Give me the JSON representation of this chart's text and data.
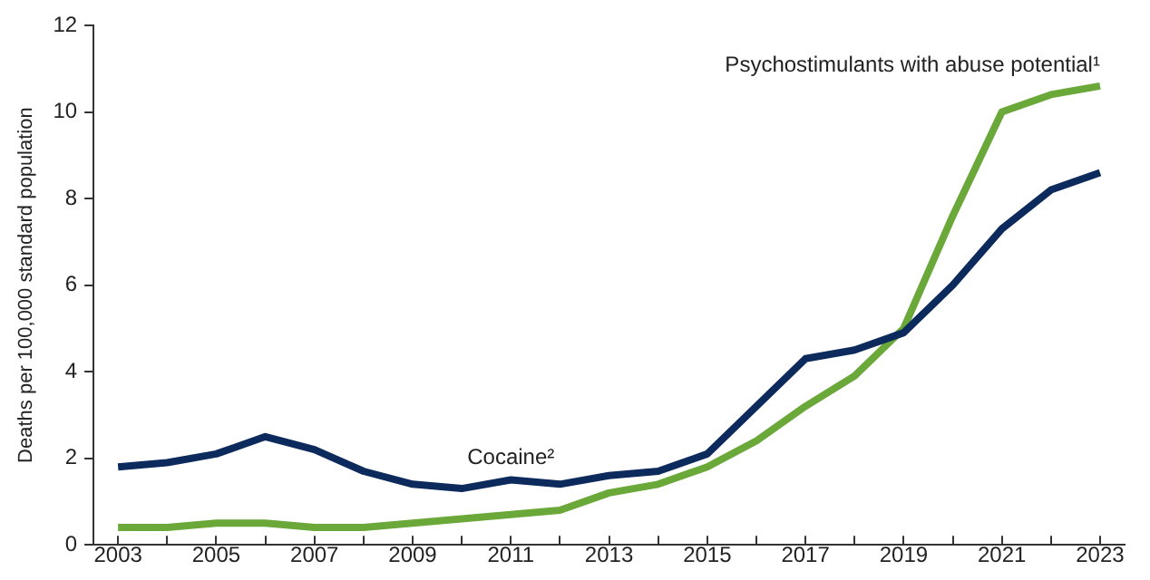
{
  "chart_data": {
    "type": "line",
    "ylabel": "Deaths per 100,000 standard population",
    "x": [
      2003,
      2004,
      2005,
      2006,
      2007,
      2008,
      2009,
      2010,
      2011,
      2012,
      2013,
      2014,
      2015,
      2016,
      2017,
      2018,
      2019,
      2020,
      2021,
      2022,
      2023
    ],
    "series": [
      {
        "name": "Cocaine²",
        "color": "#0d2a5c",
        "values": [
          1.8,
          1.9,
          2.1,
          2.5,
          2.2,
          1.7,
          1.4,
          1.3,
          1.5,
          1.4,
          1.6,
          1.7,
          2.1,
          3.2,
          4.3,
          4.5,
          4.9,
          6.0,
          7.3,
          8.2,
          8.6
        ]
      },
      {
        "name": "Psychostimulants with abuse potential¹",
        "color": "#6aa83a",
        "values": [
          0.4,
          0.4,
          0.5,
          0.5,
          0.4,
          0.4,
          0.5,
          0.6,
          0.7,
          0.8,
          1.2,
          1.4,
          1.8,
          2.4,
          3.2,
          3.9,
          5.0,
          7.6,
          10.0,
          10.4,
          10.6
        ]
      }
    ],
    "xlim": [
      2002.5,
      2023.5
    ],
    "xticks": [
      2003,
      {
        "value": 2004,
        "label": null
      },
      2005,
      {
        "value": 2006,
        "label": null
      },
      2007,
      {
        "value": 2008,
        "label": null
      },
      2009,
      {
        "value": 2010,
        "label": null
      },
      2011,
      {
        "value": 2012,
        "label": null
      },
      2013,
      {
        "value": 2014,
        "label": null
      },
      2015,
      {
        "value": 2016,
        "label": null
      },
      2017,
      {
        "value": 2018,
        "label": null
      },
      2019,
      {
        "value": 2020,
        "label": null
      },
      2021,
      {
        "value": 2022,
        "label": null
      },
      2023
    ],
    "ylim": [
      0,
      12
    ],
    "yticks": [
      0,
      2,
      4,
      6,
      8,
      10,
      12
    ],
    "grid": false,
    "legend": false,
    "marker": "none",
    "line_style": "solid"
  }
}
